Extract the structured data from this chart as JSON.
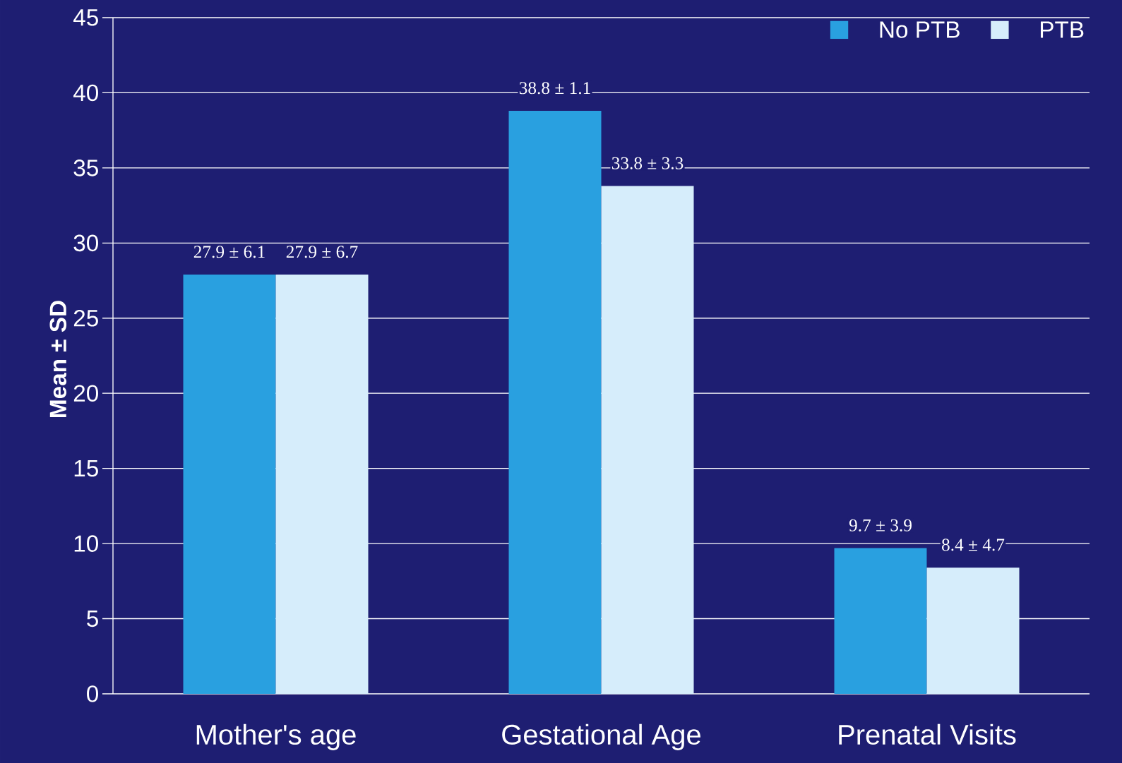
{
  "chart_data": {
    "type": "bar",
    "ylabel": "Mean ± SD",
    "categories": [
      "Mother's age",
      "Gestational Age",
      "Prenatal Visits"
    ],
    "series": [
      {
        "name": "No PTB",
        "color": "#29a0e0",
        "values": [
          27.9,
          38.8,
          9.7
        ],
        "value_labels": [
          "27.9 ± 6.1",
          "38.8 ± 1.1",
          "9.7 ± 3.9"
        ]
      },
      {
        "name": "PTB",
        "color": "#d6edfb",
        "values": [
          27.9,
          33.8,
          8.4
        ],
        "value_labels": [
          "27.9 ± 6.7",
          "33.8 ± 3.3",
          "8.4 ± 4.7"
        ]
      }
    ],
    "ylim": [
      0,
      45
    ],
    "yticks": [
      0,
      5,
      10,
      15,
      20,
      25,
      30,
      35,
      40,
      45
    ],
    "grid": "y",
    "legend": "top right"
  }
}
